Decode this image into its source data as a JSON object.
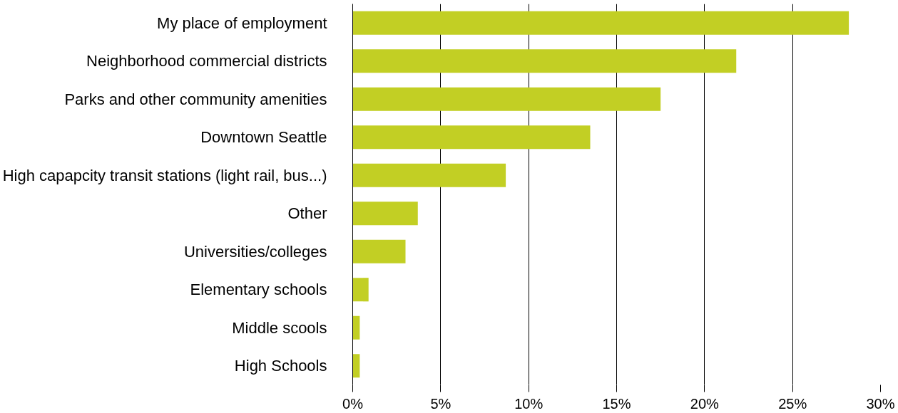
{
  "chart_data": {
    "type": "bar",
    "orientation": "horizontal",
    "categories": [
      "My place of employment",
      "Neighborhood commercial districts",
      "Parks and other community amenities",
      "Downtown Seattle",
      "High capapcity transit stations (light rail, bus...)",
      "Other",
      "Universities/colleges",
      "Elementary schools",
      "Middle scools",
      "High Schools"
    ],
    "values": [
      28.2,
      21.8,
      17.5,
      13.5,
      8.7,
      3.7,
      3.0,
      0.9,
      0.4,
      0.4
    ],
    "color": "#c2cf24",
    "xlim": [
      0,
      30
    ],
    "xticks": [
      {
        "value": 0,
        "label": "0%"
      },
      {
        "value": 5,
        "label": "5%"
      },
      {
        "value": 10,
        "label": "10%"
      },
      {
        "value": 15,
        "label": "15%"
      },
      {
        "value": 20,
        "label": "20%"
      },
      {
        "value": 25,
        "label": "25%"
      },
      {
        "value": 30,
        "label": "30%"
      }
    ],
    "grid": "x"
  }
}
